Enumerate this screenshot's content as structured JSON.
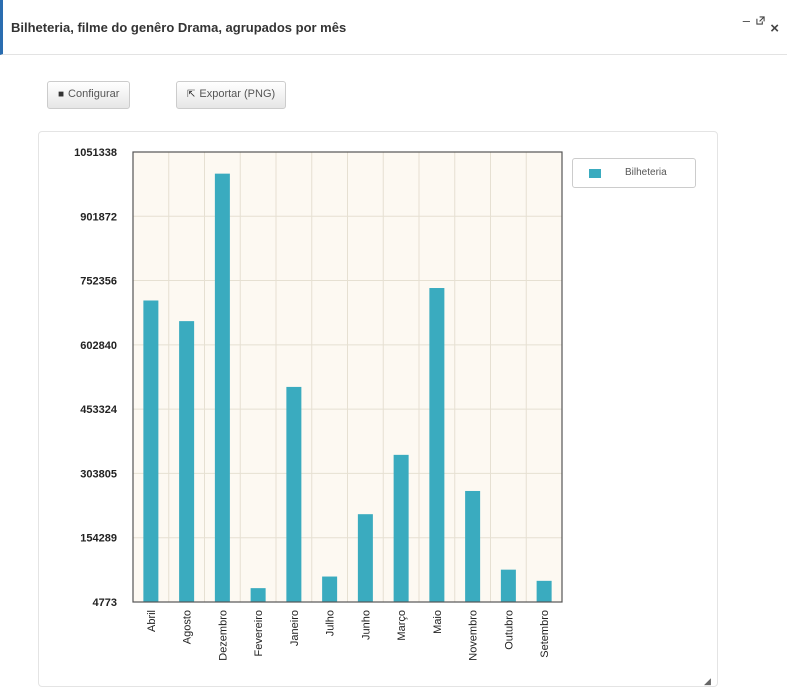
{
  "window": {
    "title": "Bilheteria, filme do genêro Drama, agrupados por mês",
    "minimize_label": "–",
    "popout_icon": "popout-icon",
    "close_label": "×"
  },
  "toolbar": {
    "configure_label": "Configurar",
    "configure_icon": "■",
    "export_label": "Exportar (PNG)",
    "export_icon": "⇱"
  },
  "legend": {
    "label": "Bilheteria",
    "color": "#3aabbf"
  },
  "chart_data": {
    "type": "bar",
    "categories": [
      "Abril",
      "Agosto",
      "Dezembro",
      "Fevereiro",
      "Janeiro",
      "Julho",
      "Junho",
      "Março",
      "Maio",
      "Novembro",
      "Outubro",
      "Setembro"
    ],
    "series": [
      {
        "name": "Bilheteria",
        "values": [
          706000,
          658000,
          1001000,
          37000,
          505000,
          64000,
          209000,
          347000,
          735000,
          263000,
          80000,
          54000
        ]
      }
    ],
    "y_ticks": [
      "4773",
      "154289",
      "303805",
      "453324",
      "602840",
      "752356",
      "901872",
      "1051338"
    ],
    "ylim": [
      4773,
      1051338
    ],
    "grid": true,
    "legend_position": "right",
    "bar_color": "#3aabbf",
    "plot_background": "#fdf9f2",
    "grid_color": "#e6e0d2"
  }
}
